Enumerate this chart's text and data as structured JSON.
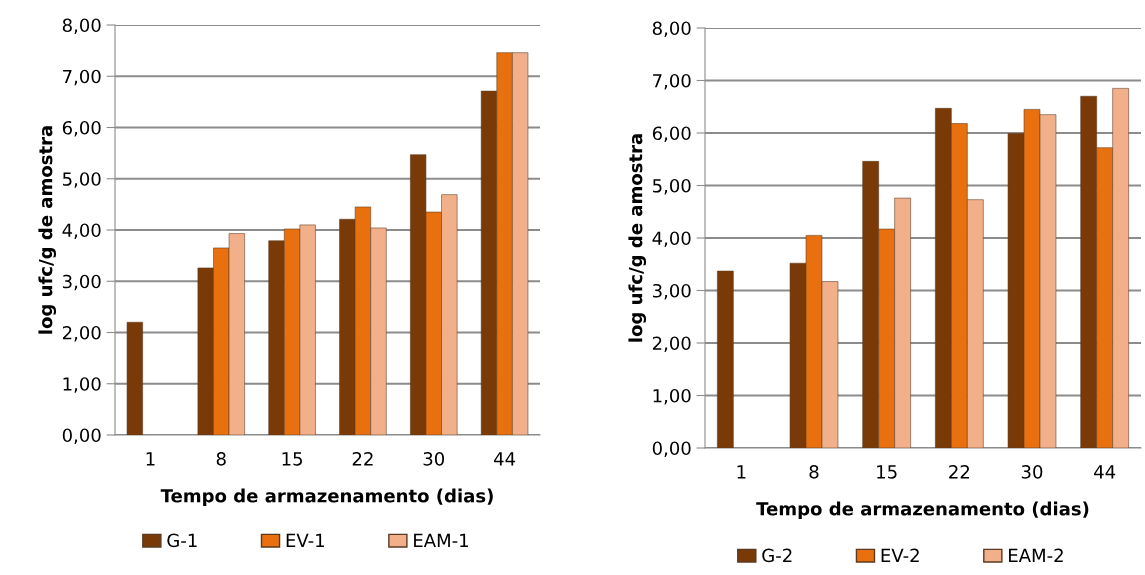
{
  "chart_data": [
    {
      "type": "bar",
      "categories": [
        "1",
        "8",
        "15",
        "22",
        "30",
        "44"
      ],
      "xlabel": "Tempo de armazenamento (dias)",
      "ylabel": "log ufc/g de amostra",
      "series": [
        {
          "name": "G-1",
          "color": "#7a3a08",
          "values": [
            2.2,
            3.26,
            3.79,
            4.21,
            5.47,
            6.71
          ]
        },
        {
          "name": "EV-1",
          "color": "#e8700f",
          "values": [
            null,
            3.65,
            4.02,
            4.45,
            4.35,
            7.46
          ]
        },
        {
          "name": "EAM-1",
          "color": "#f2b08a",
          "values": [
            null,
            3.93,
            4.1,
            4.04,
            4.69,
            7.46
          ]
        }
      ],
      "ylim": [
        0,
        8
      ],
      "yticks": [
        {
          "value": 0,
          "label": "0,00"
        },
        {
          "value": 1,
          "label": "1,00"
        },
        {
          "value": 2,
          "label": "2,00"
        },
        {
          "value": 3,
          "label": "3,00"
        },
        {
          "value": 4,
          "label": "4,00"
        },
        {
          "value": 5,
          "label": "5,00"
        },
        {
          "value": 6,
          "label": "6,00"
        },
        {
          "value": 7,
          "label": "7,00"
        },
        {
          "value": 8,
          "label": "8,00"
        }
      ],
      "grid": "y",
      "legend": "bottom"
    },
    {
      "type": "bar",
      "categories": [
        "1",
        "8",
        "15",
        "22",
        "30",
        "44"
      ],
      "xlabel": "Tempo de armazenamento (dias)",
      "ylabel": "log ufc/g de amostra",
      "series": [
        {
          "name": "G-2",
          "color": "#7a3a08",
          "values": [
            3.37,
            3.52,
            5.46,
            6.47,
            5.99,
            6.7
          ]
        },
        {
          "name": "EV-2",
          "color": "#e8700f",
          "values": [
            null,
            4.05,
            4.17,
            6.18,
            6.45,
            5.72
          ]
        },
        {
          "name": "EAM-2",
          "color": "#f2b08a",
          "values": [
            null,
            3.17,
            4.76,
            4.73,
            6.35,
            6.85
          ]
        }
      ],
      "ylim": [
        0,
        8
      ],
      "yticks": [
        {
          "value": 0,
          "label": "0,00"
        },
        {
          "value": 1,
          "label": "1,00"
        },
        {
          "value": 2,
          "label": "2,00"
        },
        {
          "value": 3,
          "label": "3,00"
        },
        {
          "value": 4,
          "label": "4,00"
        },
        {
          "value": 5,
          "label": "5,00"
        },
        {
          "value": 6,
          "label": "6,00"
        },
        {
          "value": 7,
          "label": "7,00"
        },
        {
          "value": 8,
          "label": "8,00"
        }
      ],
      "grid": "y",
      "legend": "bottom"
    }
  ]
}
